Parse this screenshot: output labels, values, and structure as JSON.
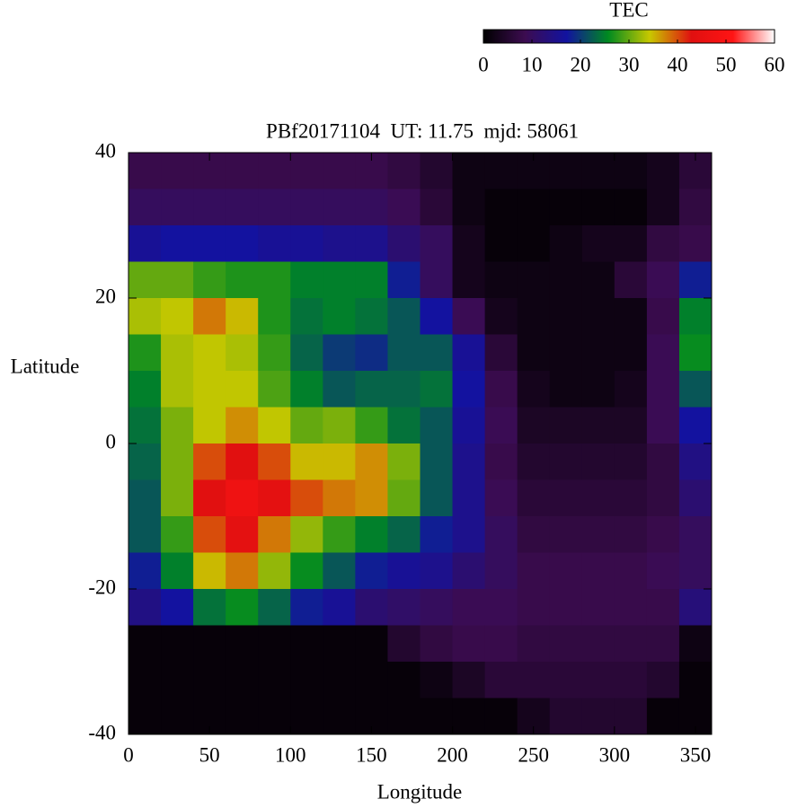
{
  "chart_data": {
    "type": "heatmap",
    "title": "PBf20171104  UT: 11.75  mjd: 58061",
    "xlabel": "Longitude",
    "ylabel": "Latitude",
    "colorbar_label": "TEC",
    "x": [
      10,
      30,
      50,
      70,
      90,
      110,
      130,
      150,
      170,
      190,
      210,
      230,
      250,
      270,
      290,
      310,
      330,
      350
    ],
    "y": [
      37.5,
      32.5,
      27.5,
      22.5,
      17.5,
      12.5,
      7.5,
      2.5,
      -2.5,
      -7.5,
      -12.5,
      -17.5,
      -22.5,
      -27.5,
      -32.5,
      -37.5
    ],
    "z": [
      [
        8,
        8,
        8,
        8,
        8,
        8,
        8,
        8,
        7,
        5,
        2,
        2,
        2,
        2,
        2,
        2,
        3,
        6
      ],
      [
        10,
        10,
        10,
        10,
        10,
        10,
        10,
        10,
        9,
        6,
        2,
        1,
        1,
        1,
        1,
        1,
        3,
        7
      ],
      [
        16,
        17,
        17,
        17,
        16,
        16,
        15,
        15,
        12,
        10,
        3,
        1,
        1,
        2,
        3,
        3,
        7,
        8
      ],
      [
        30,
        30,
        28,
        27,
        27,
        25,
        25,
        25,
        18,
        10,
        3,
        2,
        2,
        2,
        2,
        6,
        9,
        18
      ],
      [
        33,
        34,
        38,
        35,
        27,
        24,
        25,
        24,
        22,
        17,
        9,
        3,
        2,
        2,
        2,
        2,
        8,
        25
      ],
      [
        27,
        33,
        34,
        33,
        28,
        23,
        20,
        19,
        22,
        22,
        16,
        6,
        2,
        2,
        2,
        2,
        9,
        26
      ],
      [
        25,
        33,
        34,
        34,
        29,
        25,
        22,
        23,
        23,
        24,
        17,
        8,
        3,
        2,
        2,
        3,
        9,
        22
      ],
      [
        24,
        31,
        34,
        37,
        34,
        30,
        31,
        28,
        24,
        22,
        16,
        9,
        4,
        4,
        4,
        4,
        9,
        17
      ],
      [
        23,
        31,
        40,
        43,
        40,
        35,
        35,
        37,
        31,
        22,
        15,
        8,
        5,
        5,
        5,
        5,
        7,
        14
      ],
      [
        22,
        31,
        43,
        47,
        44,
        40,
        38,
        37,
        30,
        22,
        15,
        9,
        6,
        6,
        6,
        6,
        7,
        12
      ],
      [
        22,
        28,
        40,
        44,
        38,
        32,
        28,
        25,
        23,
        18,
        15,
        10,
        7,
        7,
        7,
        7,
        8,
        10
      ],
      [
        18,
        25,
        35,
        38,
        32,
        26,
        22,
        18,
        16,
        15,
        12,
        10,
        8,
        8,
        8,
        8,
        9,
        10
      ],
      [
        14,
        17,
        24,
        26,
        23,
        18,
        16,
        12,
        11,
        10,
        9,
        9,
        8,
        8,
        8,
        8,
        8,
        13
      ],
      [
        1,
        1,
        1,
        1,
        1,
        1,
        1,
        1,
        5,
        7,
        8,
        8,
        7,
        7,
        7,
        7,
        7,
        2
      ],
      [
        1,
        1,
        1,
        1,
        1,
        1,
        1,
        1,
        1,
        2,
        4,
        6,
        6,
        6,
        6,
        6,
        5,
        1
      ],
      [
        1,
        1,
        1,
        1,
        1,
        1,
        1,
        1,
        1,
        1,
        1,
        1,
        3,
        5,
        5,
        5,
        1,
        1
      ]
    ],
    "xlim": [
      0,
      360
    ],
    "ylim": [
      -40,
      40
    ],
    "xticks": [
      0,
      50,
      100,
      150,
      200,
      250,
      300,
      350
    ],
    "yticks": [
      -40,
      -20,
      0,
      20,
      40
    ],
    "clim": [
      0,
      60
    ],
    "cticks": [
      0,
      10,
      20,
      30,
      40,
      50,
      60
    ],
    "colormap": [
      "#000000",
      "#3c0c50",
      "#1212a0",
      "#008a20",
      "#c8c800",
      "#e01010",
      "#ff1414",
      "#ffffff"
    ]
  }
}
